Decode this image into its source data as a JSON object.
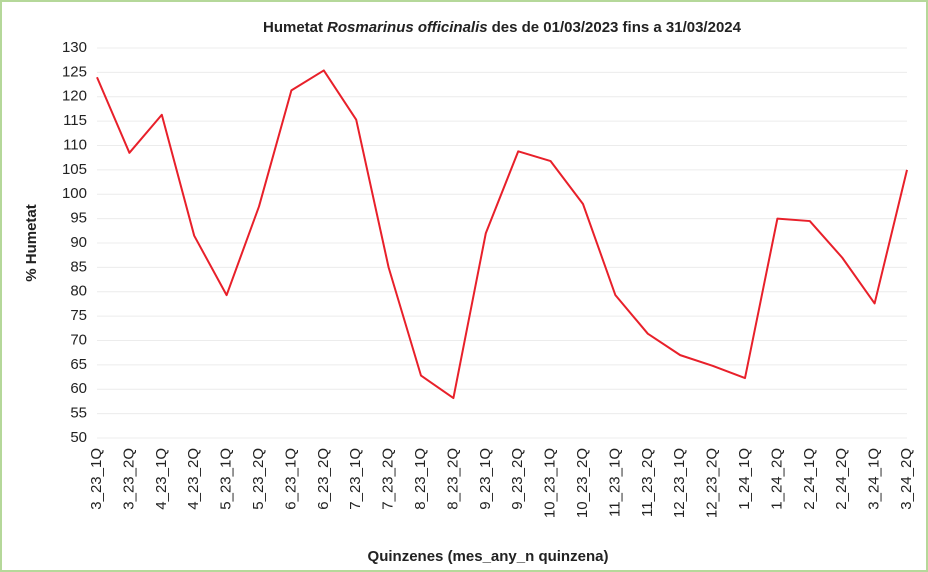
{
  "chart_data": {
    "type": "line",
    "title": [
      "Humetat",
      "Rosmarinus officinalis",
      "des de 01/03/2023 fins a 31/03/2024"
    ],
    "x_label": "Quinzenes (mes_any_n quinzena)",
    "y_label": "% Humetat",
    "categories": [
      "3_23_1Q",
      "3_23_2Q",
      "4_23_1Q",
      "4_23_2Q",
      "5_23_1Q",
      "5_23_2Q",
      "6_23_1Q",
      "6_23_2Q",
      "7_23_1Q",
      "7_23_2Q",
      "8_23_1Q",
      "8_23_2Q",
      "9_23_1Q",
      "9_23_2Q",
      "10_23_1Q",
      "10_23_2Q",
      "11_23_1Q",
      "11_23_2Q",
      "12_23_1Q",
      "12_23_2Q",
      "1_24_1Q",
      "1_24_2Q",
      "2_24_1Q",
      "2_24_2Q",
      "3_24_1Q",
      "3_24_2Q"
    ],
    "series": [
      {
        "name": "% Humetat",
        "color": "#e8202a",
        "values": [
          124,
          108.5,
          116.3,
          91.5,
          79.3,
          97.5,
          121.3,
          125.4,
          115.3,
          85,
          62.8,
          58.2,
          92,
          108.8,
          106.8,
          98,
          79.3,
          71.4,
          67,
          64.8,
          62.3,
          95,
          94.5,
          87,
          77.6,
          105
        ]
      }
    ],
    "ylim": [
      50,
      130
    ],
    "yticks": [
      50,
      55,
      60,
      65,
      70,
      75,
      80,
      85,
      90,
      95,
      100,
      105,
      110,
      115,
      120,
      125,
      130
    ],
    "grid": true
  }
}
